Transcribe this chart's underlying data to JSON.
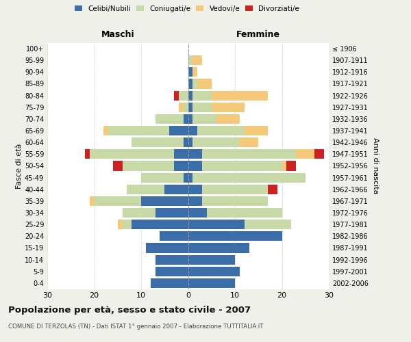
{
  "age_groups": [
    "0-4",
    "5-9",
    "10-14",
    "15-19",
    "20-24",
    "25-29",
    "30-34",
    "35-39",
    "40-44",
    "45-49",
    "50-54",
    "55-59",
    "60-64",
    "65-69",
    "70-74",
    "75-79",
    "80-84",
    "85-89",
    "90-94",
    "95-99",
    "100+"
  ],
  "birth_years": [
    "2002-2006",
    "1997-2001",
    "1992-1996",
    "1987-1991",
    "1982-1986",
    "1977-1981",
    "1972-1976",
    "1967-1971",
    "1962-1966",
    "1957-1961",
    "1952-1956",
    "1947-1951",
    "1942-1946",
    "1937-1941",
    "1932-1936",
    "1927-1931",
    "1922-1926",
    "1917-1921",
    "1912-1916",
    "1907-1911",
    "≤ 1906"
  ],
  "male": {
    "celibi": [
      8,
      7,
      7,
      9,
      6,
      12,
      7,
      10,
      5,
      1,
      3,
      3,
      1,
      4,
      1,
      0,
      0,
      0,
      0,
      0,
      0
    ],
    "coniugati": [
      0,
      0,
      0,
      0,
      0,
      2,
      7,
      10,
      8,
      9,
      11,
      18,
      11,
      13,
      6,
      1,
      2,
      0,
      0,
      0,
      0
    ],
    "vedovi": [
      0,
      0,
      0,
      0,
      0,
      1,
      0,
      1,
      0,
      0,
      0,
      0,
      0,
      1,
      0,
      1,
      0,
      0,
      0,
      0,
      0
    ],
    "divorziati": [
      0,
      0,
      0,
      0,
      0,
      0,
      0,
      0,
      0,
      0,
      2,
      1,
      0,
      0,
      0,
      0,
      1,
      0,
      0,
      0,
      0
    ]
  },
  "female": {
    "nubili": [
      10,
      11,
      10,
      13,
      20,
      12,
      4,
      3,
      3,
      1,
      3,
      3,
      1,
      2,
      1,
      1,
      1,
      1,
      1,
      0,
      0
    ],
    "coniugate": [
      0,
      0,
      0,
      0,
      0,
      10,
      16,
      14,
      14,
      24,
      17,
      20,
      10,
      10,
      5,
      4,
      4,
      1,
      0,
      1,
      0
    ],
    "vedove": [
      0,
      0,
      0,
      0,
      0,
      0,
      0,
      0,
      0,
      0,
      1,
      4,
      4,
      5,
      5,
      7,
      12,
      3,
      1,
      2,
      0
    ],
    "divorziate": [
      0,
      0,
      0,
      0,
      0,
      0,
      0,
      0,
      2,
      0,
      2,
      2,
      0,
      0,
      0,
      0,
      0,
      0,
      0,
      0,
      0
    ]
  },
  "colors": {
    "celibi_nubili": "#3b6ea8",
    "coniugati": "#c8d9a8",
    "vedovi": "#f5c97a",
    "divorziati": "#cc2222"
  },
  "xlim": 30,
  "title": "Popolazione per età, sesso e stato civile - 2007",
  "subtitle": "COMUNE DI TERZOLAS (TN) - Dati ISTAT 1° gennaio 2007 - Elaborazione TUTTITALIA.IT",
  "ylabel_left": "Fasce di età",
  "ylabel_right": "Anni di nascita",
  "xlabel_left": "Maschi",
  "xlabel_right": "Femmine",
  "bg_color": "#f0f0eb",
  "plot_bg": "#ffffff",
  "grid_color": "#cccccc"
}
